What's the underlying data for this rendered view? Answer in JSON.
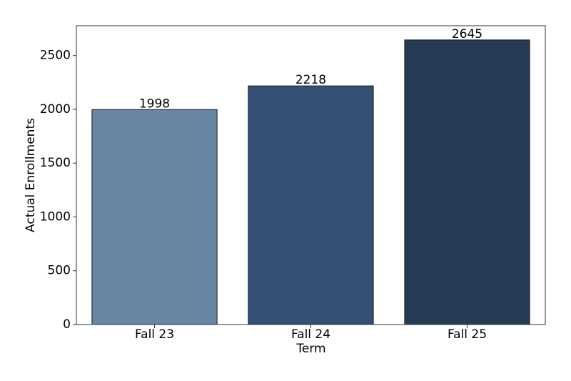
{
  "chart_data": {
    "type": "bar",
    "x_label": "Term",
    "y_label": "Actual Enrollments",
    "categories": [
      "Fall 23",
      "Fall 24",
      "Fall 25"
    ],
    "values": [
      1998,
      2218,
      2645
    ],
    "colors": [
      "#6786a3",
      "#355075",
      "#283b55"
    ],
    "ylim": [
      0,
      2777
    ],
    "yticks": [
      0,
      500,
      1000,
      1500,
      2000,
      2500
    ],
    "grid": false
  }
}
